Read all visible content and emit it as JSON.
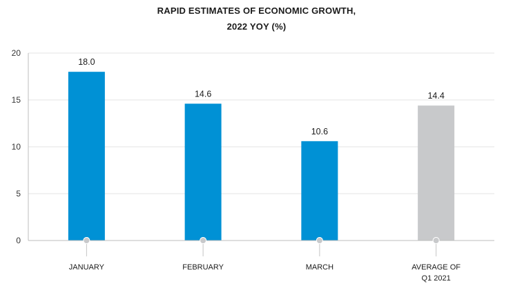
{
  "chart_data": {
    "type": "bar",
    "title_line1": "RAPID ESTIMATES OF ECONOMIC GROWTH,",
    "title_line2": "2022 YOY (%)",
    "categories": [
      {
        "lines": [
          "JANUARY"
        ]
      },
      {
        "lines": [
          "FEBRUARY"
        ]
      },
      {
        "lines": [
          "MARCH"
        ]
      },
      {
        "lines": [
          "AVERAGE OF",
          "Q1 2021"
        ]
      }
    ],
    "values": [
      18.0,
      14.6,
      10.6,
      14.4
    ],
    "value_labels": [
      "18.0",
      "14.6",
      "10.6",
      "14.4"
    ],
    "bar_colors": [
      "#0091d5",
      "#0091d5",
      "#0091d5",
      "#c8c9cb"
    ],
    "yticks": [
      0,
      5,
      10,
      15,
      20
    ],
    "ylim": [
      0,
      20
    ],
    "grid": true,
    "xlabel": "",
    "ylabel": ""
  }
}
